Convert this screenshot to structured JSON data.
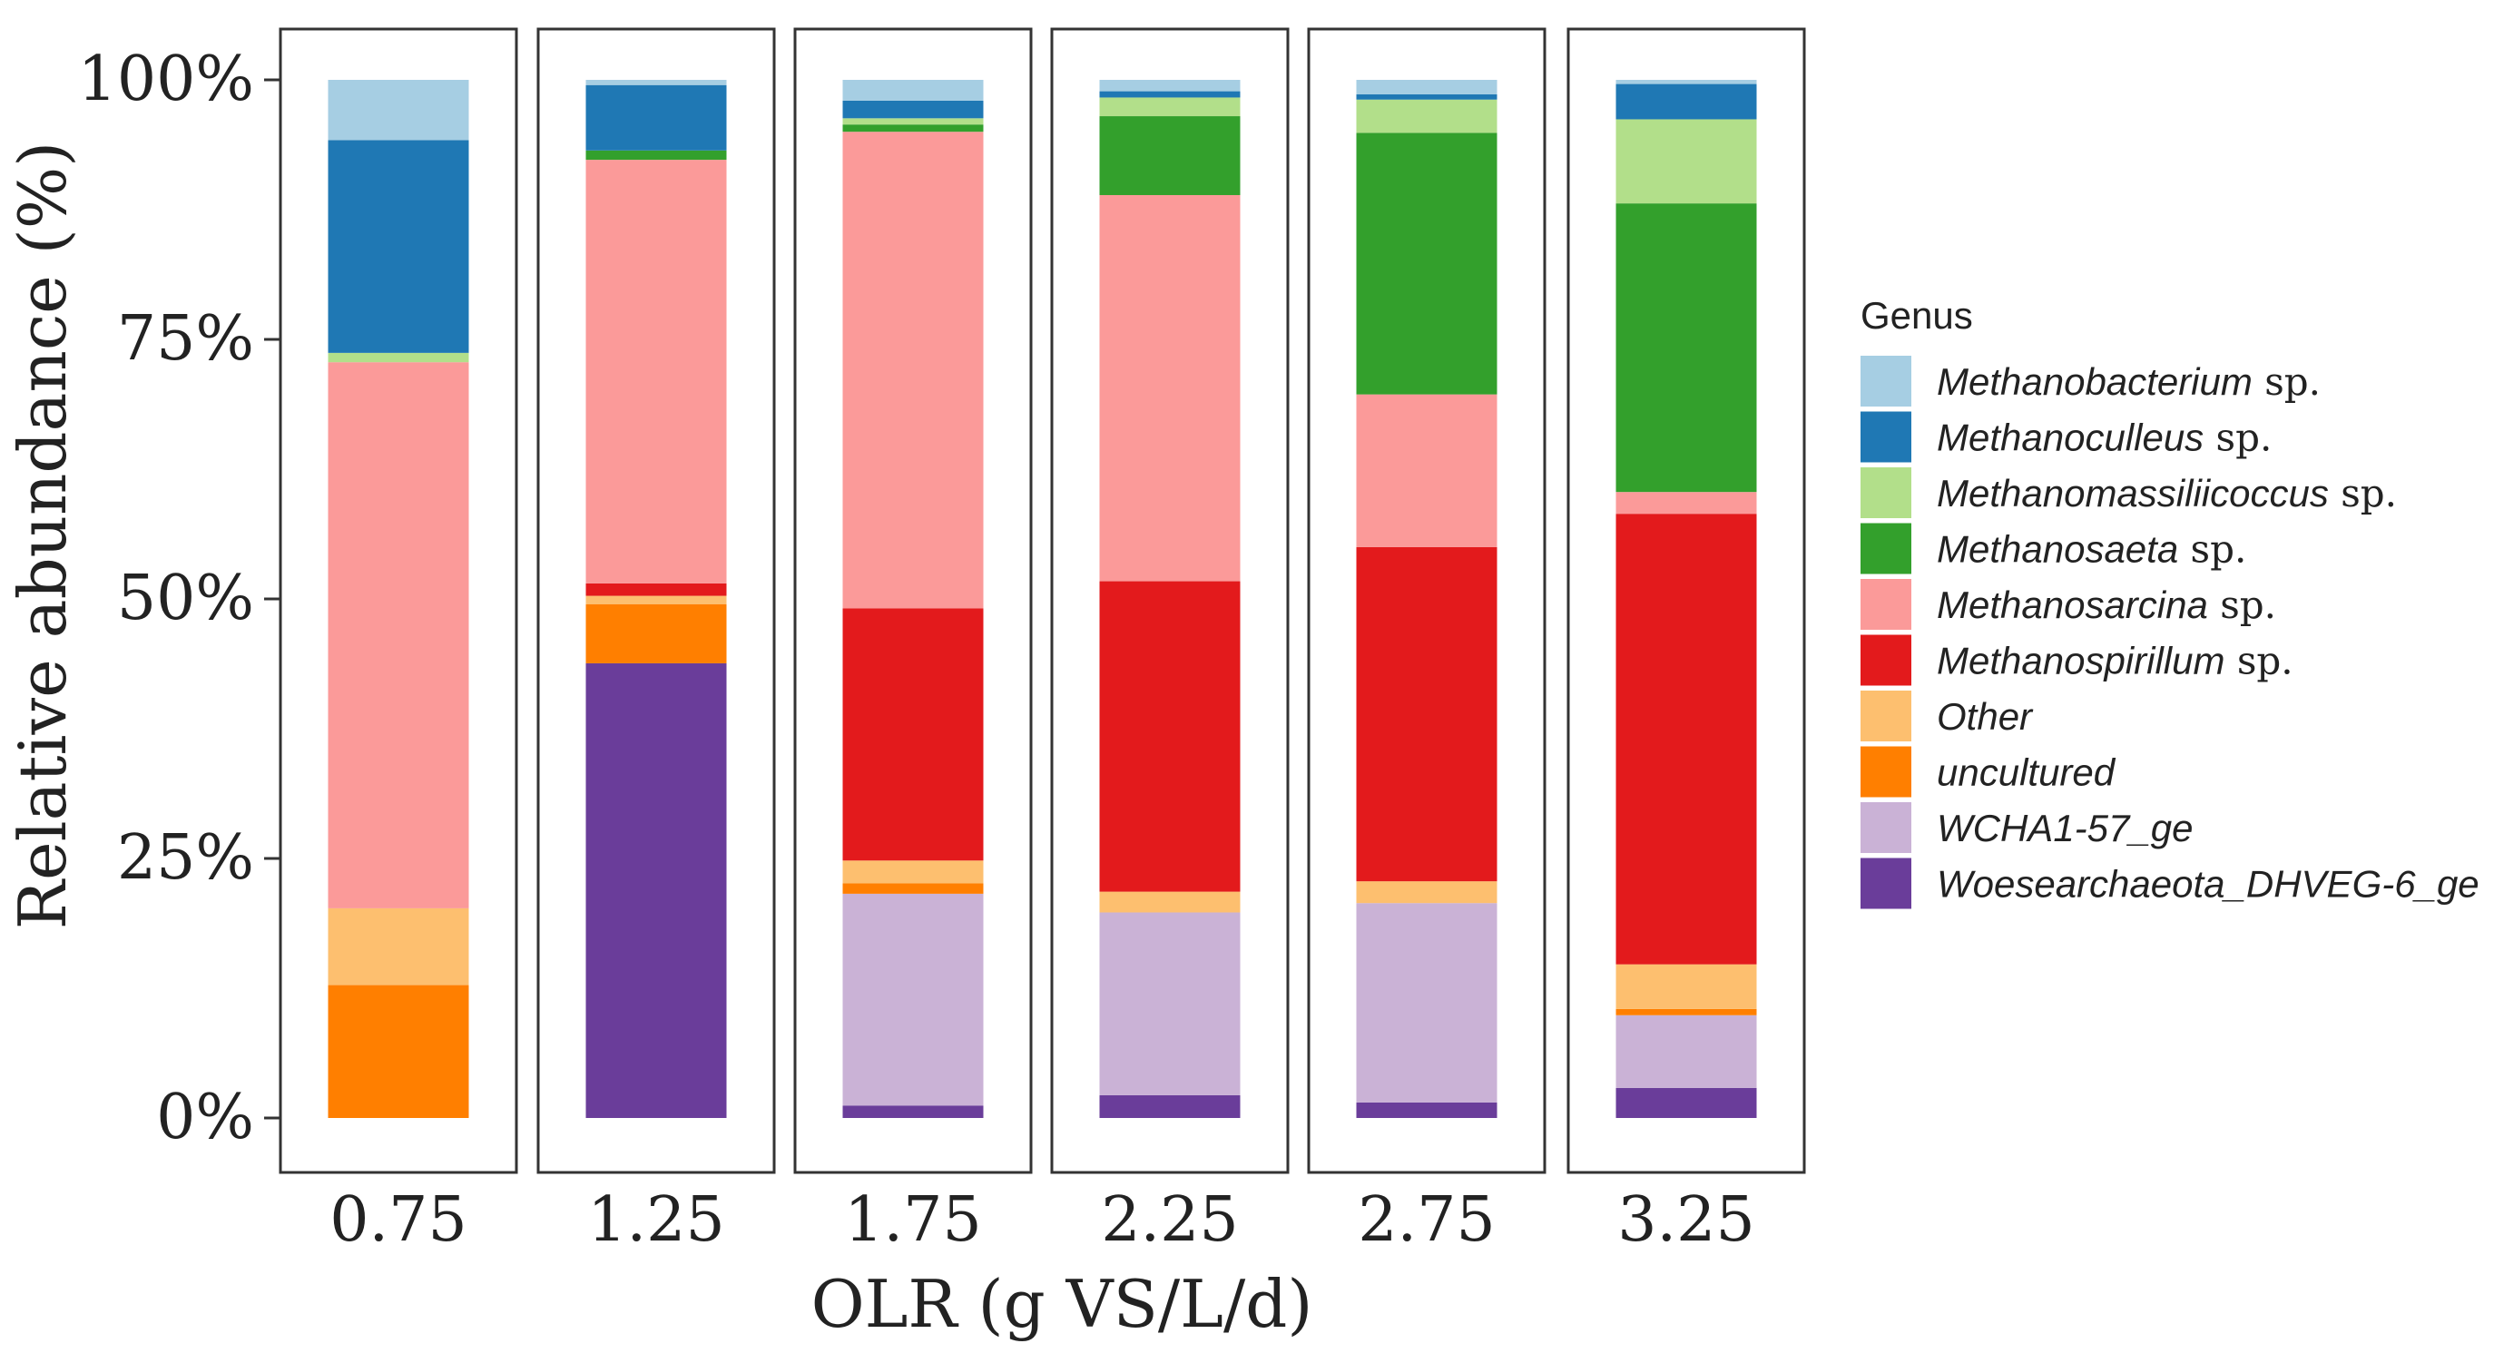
{
  "chart_data": {
    "type": "bar",
    "stacked": true,
    "facet": true,
    "xlabel": "OLR (g VS/L/d)",
    "ylabel": "Relative abundance (%)",
    "ylim": [
      0,
      100
    ],
    "y_ticks": [
      "0%",
      "25%",
      "50%",
      "75%",
      "100%"
    ],
    "y_tick_values": [
      0,
      25,
      50,
      75,
      100
    ],
    "categories": [
      "0.75",
      "1.25",
      "1.75",
      "2.25",
      "2.75",
      "3.25"
    ],
    "legend_title": "Genus",
    "legend_position": "right",
    "series": [
      {
        "name": "Woesearchaeota_DHVEG-6_ge",
        "suffix": "",
        "color": "#6a3d9a",
        "values": [
          0,
          43.8,
          1.2,
          2.2,
          1.5,
          2.9
        ]
      },
      {
        "name": "WCHA1-57_ge",
        "suffix": "",
        "color": "#cab2d6",
        "values": [
          0,
          0,
          20.4,
          17.6,
          19.2,
          7.0
        ]
      },
      {
        "name": "uncultured",
        "suffix": "",
        "color": "#ff7f00",
        "values": [
          12.8,
          5.7,
          1.0,
          0,
          0,
          0.6
        ]
      },
      {
        "name": "Other",
        "suffix": "",
        "color": "#fdbf6f",
        "values": [
          7.4,
          0.8,
          2.2,
          2.0,
          2.1,
          4.3
        ]
      },
      {
        "name": "Methanospirillum",
        "suffix": " sp.",
        "color": "#e31a1c",
        "values": [
          0,
          1.2,
          24.3,
          29.9,
          32.2,
          43.4
        ]
      },
      {
        "name": "Methanosarcina",
        "suffix": " sp.",
        "color": "#fb9a99",
        "values": [
          52.6,
          40.8,
          45.9,
          37.2,
          14.7,
          2.1
        ]
      },
      {
        "name": "Methanosaeta",
        "suffix": " sp.",
        "color": "#33a02c",
        "values": [
          0,
          0.9,
          0.7,
          7.6,
          25.2,
          27.8
        ]
      },
      {
        "name": "Methanomassiliicoccus",
        "suffix": " sp.",
        "color": "#b2df8a",
        "values": [
          0.9,
          0,
          0.6,
          1.8,
          3.2,
          8.1
        ]
      },
      {
        "name": "Methanoculleus",
        "suffix": " sp.",
        "color": "#1f78b4",
        "values": [
          20.5,
          6.3,
          1.7,
          0.6,
          0.5,
          3.4
        ]
      },
      {
        "name": "Methanobacterium",
        "suffix": " sp.",
        "color": "#a6cee3",
        "values": [
          5.8,
          0.5,
          2.0,
          1.1,
          1.4,
          0.4
        ]
      }
    ],
    "legend_order": [
      "Methanobacterium",
      "Methanoculleus",
      "Methanomassiliicoccus",
      "Methanosaeta",
      "Methanosarcina",
      "Methanospirillum",
      "Other",
      "uncultured",
      "WCHA1-57_ge",
      "Woesearchaeota_DHVEG-6_ge"
    ]
  }
}
